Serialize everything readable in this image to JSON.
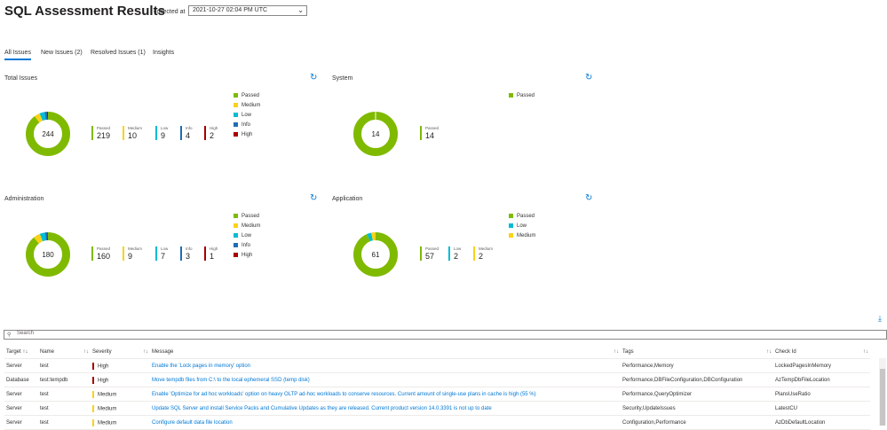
{
  "header": {
    "title": "SQL Assessment Results",
    "collected_label": "collected at",
    "collected_value": "2021-10-27 02:04 PM UTC"
  },
  "tabs": [
    "All Issues",
    "New Issues (2)",
    "Resolved Issues (1)",
    "Insights"
  ],
  "colors": {
    "passed": "#7fba00",
    "medium": "#fcd116",
    "low": "#00bcd4",
    "info": "#1e6eb5",
    "high": "#a80000"
  },
  "panels": {
    "total": {
      "title": "Total Issues",
      "center": "244",
      "stats": [
        {
          "label": "Passed",
          "value": "219"
        },
        {
          "label": "Medium",
          "value": "10"
        },
        {
          "label": "Low",
          "value": "9"
        },
        {
          "label": "Info",
          "value": "4"
        },
        {
          "label": "High",
          "value": "2"
        }
      ],
      "legend": [
        "Passed",
        "Medium",
        "Low",
        "Info",
        "High"
      ]
    },
    "system": {
      "title": "System",
      "center": "14",
      "stats": [
        {
          "label": "Passed",
          "value": "14"
        }
      ],
      "legend": [
        "Passed"
      ]
    },
    "administration": {
      "title": "Administration",
      "center": "180",
      "stats": [
        {
          "label": "Passed",
          "value": "160"
        },
        {
          "label": "Medium",
          "value": "9"
        },
        {
          "label": "Low",
          "value": "7"
        },
        {
          "label": "Info",
          "value": "3"
        },
        {
          "label": "High",
          "value": "1"
        }
      ],
      "legend": [
        "Passed",
        "Medium",
        "Low",
        "Info",
        "High"
      ]
    },
    "application": {
      "title": "Application",
      "center": "61",
      "stats": [
        {
          "label": "Passed",
          "value": "57"
        },
        {
          "label": "Low",
          "value": "2"
        },
        {
          "label": "Medium",
          "value": "2"
        }
      ],
      "legend": [
        "Passed",
        "Low",
        "Medium"
      ]
    }
  },
  "search": {
    "placeholder": "Search"
  },
  "table": {
    "headers": [
      "Target",
      "Name",
      "Severity",
      "Message",
      "Tags",
      "Check Id"
    ],
    "rows": [
      {
        "target": "Server",
        "name": "test",
        "severity": "High",
        "message": "Enable the 'Lock pages in memory' option",
        "tags": "Performance,Memory",
        "check": "LockedPagesInMemory"
      },
      {
        "target": "Database",
        "name": "test:tempdb",
        "severity": "High",
        "message": "Move tempdb files from C:\\ to the local ephemeral SSD (temp disk)",
        "tags": "Performance,DBFileConfiguration,DBConfiguration",
        "check": "AzTempDbFileLocation"
      },
      {
        "target": "Server",
        "name": "test",
        "severity": "Medium",
        "message": "Enable 'Optimize for ad hoc workloads' option on heavy OLTP ad-hoc workloads to conserve resources. Current amount of single-use plans in cache is high (55 %)",
        "tags": "Performance,QueryOptimizer",
        "check": "PlansUseRatio"
      },
      {
        "target": "Server",
        "name": "test",
        "severity": "Medium",
        "message": "Update SQL Server and install Service Packs and Cumulative Updates as they are released. Current product version 14.0.3391 is not up to date",
        "tags": "Security,UpdateIssues",
        "check": "LatestCU"
      },
      {
        "target": "Server",
        "name": "test",
        "severity": "Medium",
        "message": "Configure default data file location",
        "tags": "Configuration,Performance",
        "check": "AzDbDefaultLocation"
      }
    ]
  }
}
